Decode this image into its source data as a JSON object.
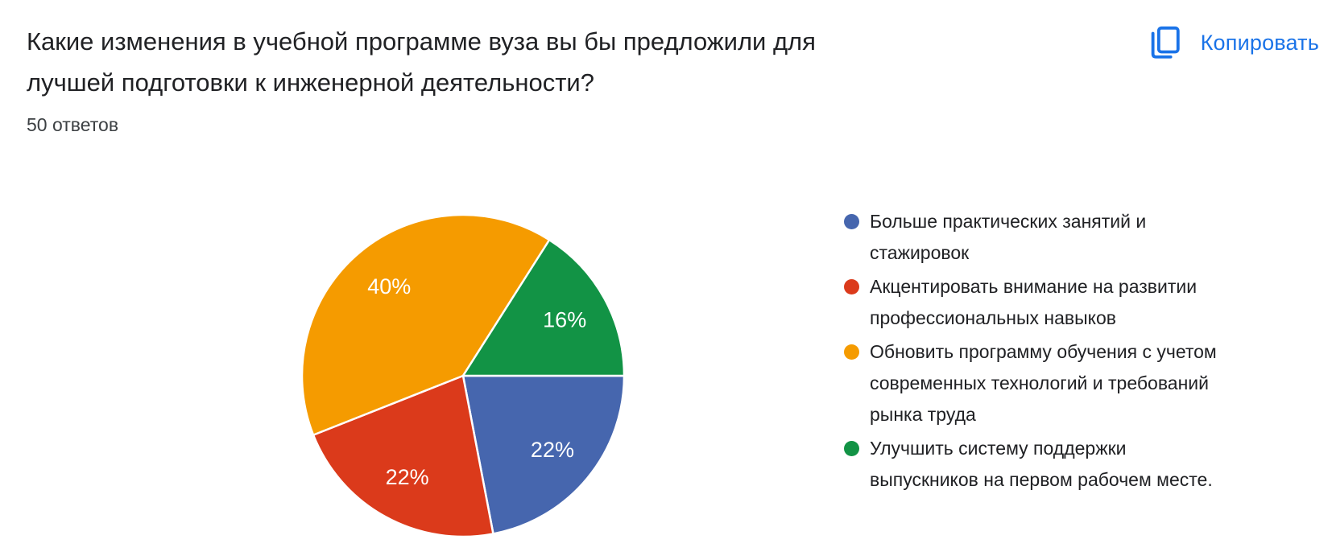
{
  "colors": {
    "accent_blue": "#1a73e8",
    "title_text": "#202124",
    "secondary_text": "#3c4043",
    "slice_label_text": "#ffffff"
  },
  "header": {
    "title_lines": [
      "Какие изменения в учебной программе вуза вы бы предложили для",
      "лучшей подготовки к инженерной деятельности?"
    ],
    "responses_count": "50 ответов",
    "copy_button_label": "Копировать"
  },
  "chart_data": {
    "type": "pie",
    "title": "Какие изменения в учебной программе вуза вы бы предложили для лучшей подготовки к инженерной деятельности?",
    "subtitle": "50 ответов",
    "legend_position": "right",
    "start_angle_deg": 0,
    "direction": "clockwise-from-east",
    "slices": [
      {
        "label": "Больше практических занятий и стажировок",
        "value_pct": 22,
        "display": "22%",
        "color": "#4666AE"
      },
      {
        "label": "Акцентировать внимание на развитии профессиональных навыков",
        "value_pct": 22,
        "display": "22%",
        "color": "#DB3A1B"
      },
      {
        "label": "Обновить программу обучения с учетом современных технологий и требований рынка труда",
        "value_pct": 40,
        "display": "40%",
        "color": "#F59B00"
      },
      {
        "label": "Улучшить систему поддержки выпускников на первом рабочем месте.",
        "value_pct": 16,
        "display": "16%",
        "color": "#129345"
      }
    ]
  }
}
